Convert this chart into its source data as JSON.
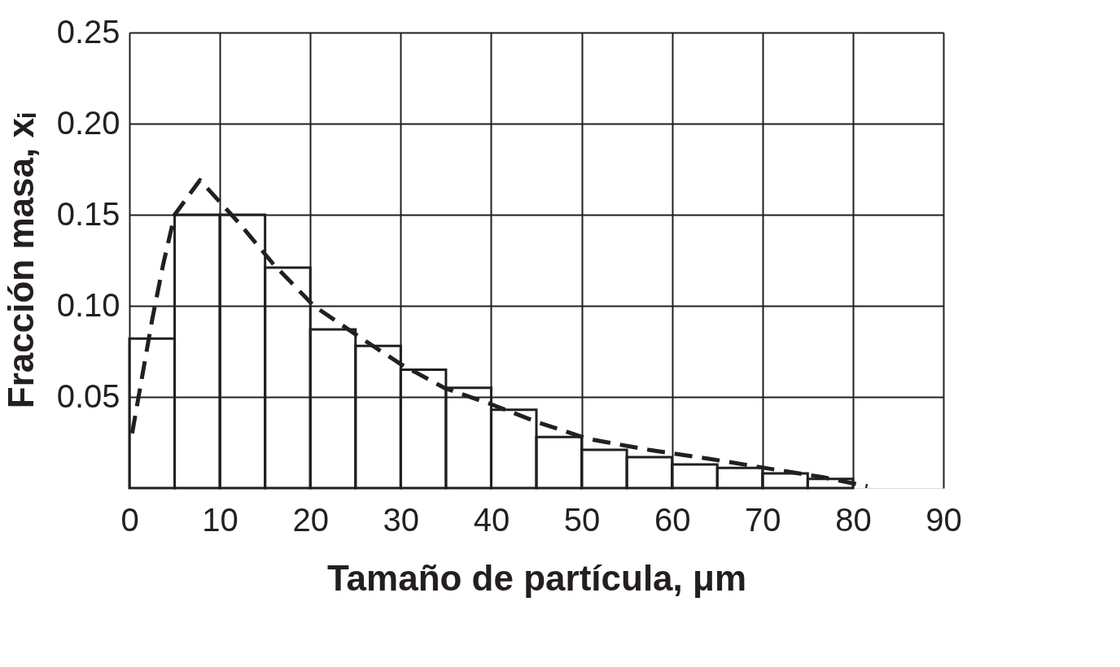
{
  "chart_data": {
    "type": "histogram",
    "xlabel": "Tamaño de partícula, μm",
    "ylabel": "Fracción masa, xᵢ",
    "bins": [
      0,
      5,
      10,
      15,
      20,
      25,
      30,
      35,
      40,
      45,
      50,
      55,
      60,
      65,
      70,
      75,
      80
    ],
    "values": [
      0.082,
      0.15,
      0.15,
      0.121,
      0.087,
      0.078,
      0.065,
      0.055,
      0.043,
      0.028,
      0.021,
      0.017,
      0.013,
      0.011,
      0.008,
      0.005
    ],
    "color": "#231f20",
    "series": [
      {
        "type": "line",
        "color": "#231f20",
        "line_style": "dashed",
        "x": [
          0.3,
          2.5,
          3.7,
          5,
          7.8,
          12.2,
          15.9,
          20.4,
          25.4,
          30,
          34.8,
          40,
          45.2,
          50.7,
          57.4,
          64.2,
          70.3,
          76.6,
          81.6
        ],
        "values": [
          0.03,
          0.092,
          0.122,
          0.15,
          0.169,
          0.145,
          0.123,
          0.1,
          0.083,
          0.068,
          0.055,
          0.046,
          0.036,
          0.027,
          0.021,
          0.016,
          0.011,
          0.006,
          0.001
        ]
      }
    ],
    "xlim": [
      0,
      90
    ],
    "ylim": [
      0,
      0.25
    ],
    "xticks": [
      0,
      10,
      20,
      30,
      40,
      50,
      60,
      70,
      80,
      90
    ],
    "yticks": [
      {
        "value": 0.05,
        "label": "0.05"
      },
      {
        "value": 0.1,
        "label": "0.10"
      },
      0.15,
      {
        "value": 0.2,
        "label": "0.20"
      },
      0.25
    ],
    "grid": true
  }
}
